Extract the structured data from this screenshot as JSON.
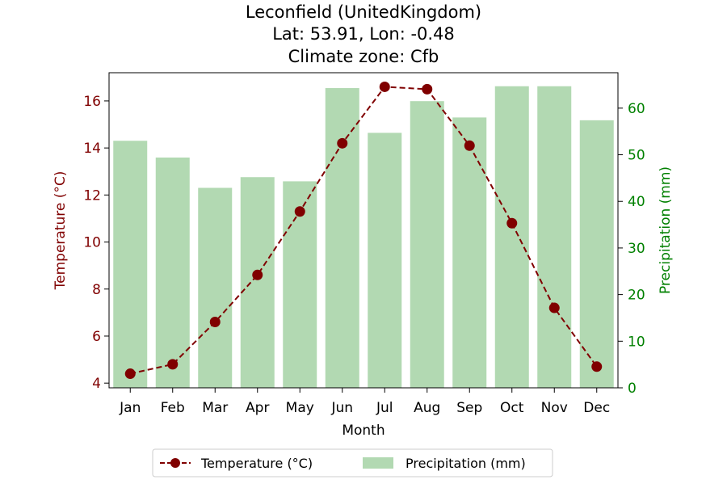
{
  "chart_data": {
    "type": "bar+line",
    "title_lines": [
      "Leconfield (UnitedKingdom)",
      "Lat: 53.91, Lon: -0.48",
      "Climate zone: Cfb"
    ],
    "xlabel": "Month",
    "ylabel_left": "Temperature (°C)",
    "ylabel_right": "Precipitation (mm)",
    "categories": [
      "Jan",
      "Feb",
      "Mar",
      "Apr",
      "May",
      "Jun",
      "Jul",
      "Aug",
      "Sep",
      "Oct",
      "Nov",
      "Dec"
    ],
    "temperature": {
      "name": "Temperature (°C)",
      "color": "#800000",
      "values": [
        4.4,
        4.8,
        6.6,
        8.6,
        11.3,
        14.2,
        16.6,
        16.5,
        14.1,
        10.8,
        7.2,
        4.7
      ]
    },
    "precipitation": {
      "name": "Precipitation (mm)",
      "color": "#b2d9b2",
      "values": [
        53.0,
        49.4,
        42.9,
        45.2,
        44.3,
        64.3,
        54.7,
        61.5,
        58.0,
        64.7,
        64.7,
        57.4
      ]
    },
    "y_left": {
      "min": 3.8,
      "max": 17.2,
      "ticks": [
        4,
        6,
        8,
        10,
        12,
        14,
        16
      ],
      "color": "#800000"
    },
    "y_right": {
      "min": 0,
      "max": 67.6,
      "ticks": [
        0,
        10,
        20,
        30,
        40,
        50,
        60
      ],
      "color": "#008000"
    },
    "legend_position": "bottom-center",
    "grid": false
  }
}
